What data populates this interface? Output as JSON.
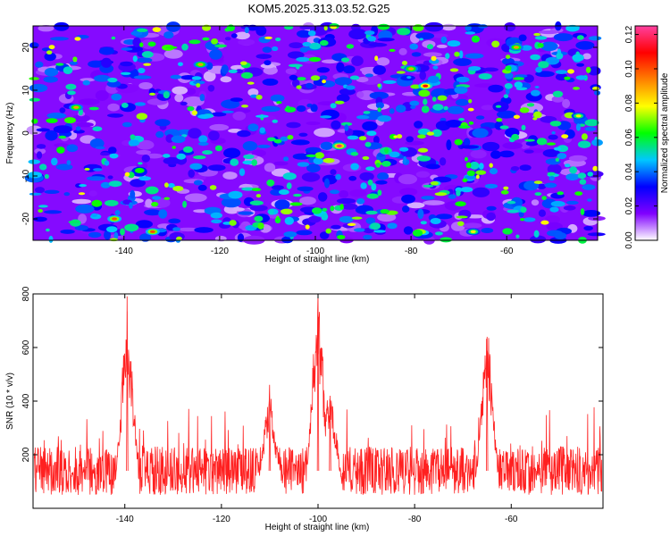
{
  "title": "KOM5.2025.313.03.52.G25",
  "chart_data": [
    {
      "type": "heatmap",
      "xlabel": "Height of straight line (km)",
      "ylabel": "Frequency (Hz)",
      "xlim": [
        -159,
        -41
      ],
      "ylim": [
        -25,
        25
      ],
      "xticks": [
        -140,
        -120,
        -100,
        -80,
        -60
      ],
      "yticks": [
        -20,
        -10,
        0,
        10,
        20
      ],
      "grid": false,
      "colorbar": {
        "label": "Normalized spectral amplitude",
        "range": [
          0.0,
          0.125
        ],
        "ticks": [
          0.0,
          0.02,
          0.04,
          0.06,
          0.08,
          0.1,
          0.12
        ],
        "tick_labels": [
          "0.00",
          "0.02",
          "0.04",
          "0.06",
          "0.08",
          "0.10",
          "0.12"
        ],
        "colors": [
          "#ffffff",
          "#8000ff",
          "#0000ff",
          "#00c8ff",
          "#00ff00",
          "#ffff00",
          "#ff8000",
          "#ff0000",
          "#ff40a0"
        ]
      },
      "peaks": [
        {
          "x": -95,
          "y": -3,
          "value": 0.12
        },
        {
          "x": -77,
          "y": 11,
          "value": 0.11
        },
        {
          "x": -134,
          "y": -23,
          "value": 0.1
        },
        {
          "x": -142,
          "y": -20,
          "value": 0.1
        },
        {
          "x": -150,
          "y": 6,
          "value": 0.09
        },
        {
          "x": -124,
          "y": 16,
          "value": 0.09
        },
        {
          "x": -80,
          "y": 15,
          "value": 0.09
        },
        {
          "x": -58,
          "y": 20,
          "value": 0.09
        },
        {
          "x": -67,
          "y": -23,
          "value": 0.08
        },
        {
          "x": -45,
          "y": 4,
          "value": 0.08
        }
      ]
    },
    {
      "type": "line",
      "xlabel": "Height of straight line (km)",
      "ylabel": "SNR (10 * v/v)",
      "xlim": [
        -159,
        -41
      ],
      "ylim": [
        0,
        800
      ],
      "xticks": [
        -140,
        -120,
        -100,
        -80,
        -60
      ],
      "yticks": [
        200,
        400,
        600,
        800
      ],
      "grid": false,
      "line_color": "#ff2020",
      "baseline_mean": 140,
      "peaks": [
        {
          "x": -139.5,
          "y": 735
        },
        {
          "x": -100,
          "y": 800
        },
        {
          "x": -65,
          "y": 640
        },
        {
          "x": -110,
          "y": 390
        },
        {
          "x": -97.5,
          "y": 420
        }
      ]
    }
  ]
}
